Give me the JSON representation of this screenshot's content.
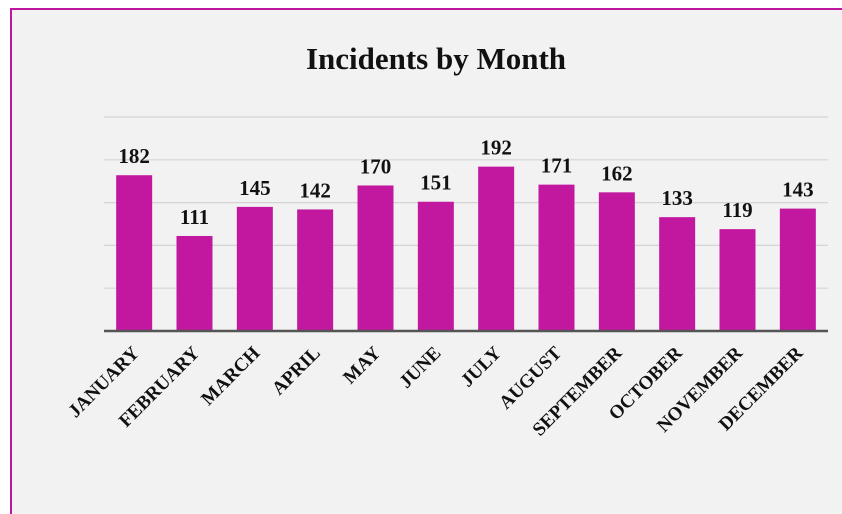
{
  "chart_data": {
    "type": "bar",
    "title": "Incidents by Month",
    "categories": [
      "JANUARY",
      "FEBRUARY",
      "MARCH",
      "APRIL",
      "MAY",
      "JUNE",
      "JULY",
      "AUGUST",
      "SEPTEMBER",
      "OCTOBER",
      "NOVEMBER",
      "DECEMBER"
    ],
    "values": [
      182,
      111,
      145,
      142,
      170,
      151,
      192,
      171,
      162,
      133,
      119,
      143
    ],
    "color": "#c2189f",
    "ylim": [
      0,
      250
    ],
    "yticks": [
      0,
      50,
      100,
      150,
      200,
      250
    ],
    "grid": true
  }
}
